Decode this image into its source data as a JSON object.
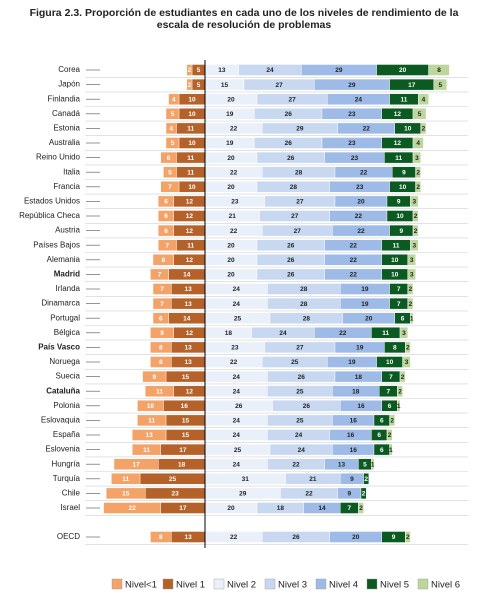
{
  "chart_data": {
    "type": "diverging-stacked-bar",
    "title": "Figura 2.3. Proporción de estudiantes en cada uno de los niveles de rendimiento de la escala de resolución de problemas",
    "categories": [
      "Corea",
      "Japón",
      "Finlandia",
      "Canadá",
      "Estonia",
      "Australia",
      "Reino Unido",
      "Italia",
      "Francia",
      "Estados Unidos",
      "República Checa",
      "Austria",
      "Países Bajos",
      "Alemania",
      "Madrid",
      "Irlanda",
      "Dinamarca",
      "Portugal",
      "Bélgica",
      "País Vasco",
      "Noruega",
      "Suecia",
      "Cataluña",
      "Polonia",
      "Eslovaquia",
      "España",
      "Eslovenia",
      "Hungría",
      "Turquía",
      "Chile",
      "Israel",
      "OECD"
    ],
    "series": [
      {
        "name": "Nivel<1",
        "color": "#f3a368",
        "side": "negative",
        "values": [
          2,
          2,
          4,
          5,
          4,
          5,
          6,
          5,
          7,
          6,
          6,
          6,
          7,
          8,
          7,
          7,
          7,
          6,
          9,
          8,
          8,
          9,
          11,
          10,
          11,
          13,
          11,
          17,
          11,
          15,
          22,
          8
        ]
      },
      {
        "name": "Nivel 1",
        "color": "#b4622a",
        "side": "negative",
        "values": [
          5,
          5,
          10,
          10,
          11,
          10,
          11,
          11,
          10,
          12,
          12,
          12,
          11,
          12,
          14,
          13,
          13,
          14,
          12,
          13,
          13,
          15,
          12,
          16,
          15,
          15,
          17,
          18,
          25,
          23,
          17,
          13
        ]
      },
      {
        "name": "Nivel 2",
        "color": "#eaf0fa",
        "side": "positive",
        "values": [
          13,
          15,
          20,
          19,
          22,
          19,
          20,
          22,
          20,
          23,
          21,
          22,
          20,
          20,
          20,
          24,
          24,
          25,
          18,
          23,
          22,
          24,
          24,
          26,
          24,
          24,
          25,
          24,
          31,
          29,
          20,
          22
        ]
      },
      {
        "name": "Nivel 3",
        "color": "#c8d8f0",
        "side": "positive",
        "values": [
          24,
          27,
          27,
          26,
          29,
          26,
          26,
          28,
          28,
          27,
          27,
          27,
          26,
          26,
          26,
          28,
          28,
          28,
          24,
          27,
          25,
          26,
          25,
          26,
          25,
          24,
          24,
          22,
          21,
          22,
          18,
          26
        ]
      },
      {
        "name": "Nivel 4",
        "color": "#9dbbe6",
        "side": "positive",
        "values": [
          29,
          29,
          24,
          23,
          22,
          23,
          23,
          22,
          23,
          20,
          22,
          22,
          22,
          22,
          22,
          19,
          19,
          20,
          22,
          19,
          19,
          18,
          18,
          16,
          16,
          16,
          16,
          13,
          9,
          9,
          14,
          20
        ]
      },
      {
        "name": "Nivel 5",
        "color": "#0b5a22",
        "side": "positive",
        "values": [
          20,
          17,
          11,
          12,
          10,
          12,
          11,
          9,
          10,
          9,
          10,
          9,
          11,
          10,
          10,
          7,
          7,
          6,
          11,
          8,
          10,
          7,
          7,
          6,
          6,
          6,
          6,
          5,
          2,
          2,
          7,
          9
        ]
      },
      {
        "name": "Nivel 6",
        "color": "#bcd69c",
        "side": "positive",
        "values": [
          8,
          5,
          4,
          5,
          2,
          4,
          3,
          2,
          2,
          3,
          2,
          2,
          3,
          3,
          3,
          2,
          2,
          1,
          3,
          2,
          3,
          2,
          2,
          1,
          2,
          2,
          1,
          1,
          null,
          null,
          2,
          2
        ]
      }
    ]
  }
}
